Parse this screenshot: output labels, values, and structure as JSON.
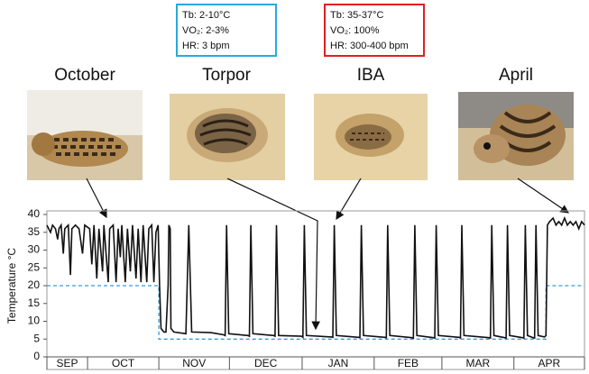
{
  "chart_data": {
    "type": "line",
    "y_label": "Temperature °C",
    "categories": [
      "SEP",
      "OCT",
      "NOV",
      "DEC",
      "JAN",
      "FEB",
      "MAR",
      "APR"
    ],
    "xlim": [
      0,
      7.54
    ],
    "xticks": [
      0,
      0.57,
      1.57,
      2.56,
      3.58,
      4.59,
      5.54,
      6.55,
      7.54
    ],
    "ylim": [
      0,
      40
    ],
    "yticks": [
      0,
      5,
      10,
      15,
      20,
      25,
      30,
      35,
      40
    ],
    "annotations": {
      "panels": [
        "October",
        "Torpor",
        "IBA",
        "April"
      ],
      "boxes": [
        {
          "color": "#29a8df",
          "lines": [
            "Tb: 2-10°C",
            "VO₂: 2-3%",
            "HR: 3 bpm"
          ]
        },
        {
          "color": "#e02020",
          "lines": [
            "Tb: 35-37°C",
            "VO₂: 100%",
            "HR: 300-400 bpm"
          ]
        }
      ]
    },
    "series": [
      {
        "color": "#111111",
        "line_style": "solid",
        "x": [
          0,
          0.05,
          0.08,
          0.12,
          0.15,
          0.17,
          0.2,
          0.23,
          0.25,
          0.3,
          0.33,
          0.35,
          0.4,
          0.45,
          0.5,
          0.53,
          0.6,
          0.63,
          0.66,
          0.7,
          0.73,
          0.78,
          0.8,
          0.86,
          0.88,
          0.93,
          0.97,
          1.0,
          1.03,
          1.05,
          1.1,
          1.13,
          1.17,
          1.2,
          1.25,
          1.28,
          1.32,
          1.35,
          1.4,
          1.43,
          1.47,
          1.5,
          1.53,
          1.56,
          1.58,
          1.6,
          1.64,
          1.67,
          1.7,
          1.71,
          1.73,
          1.74,
          1.78,
          1.95,
          1.99,
          2.03,
          2.3,
          2.48,
          2.5,
          2.52,
          2.55,
          2.82,
          2.84,
          2.86,
          2.89,
          3.18,
          3.2,
          3.22,
          3.25,
          3.57,
          3.59,
          3.61,
          3.64,
          3.99,
          4.01,
          4.03,
          4.06,
          4.37,
          4.39,
          4.41,
          4.44,
          4.74,
          4.76,
          4.78,
          4.81,
          5.12,
          5.14,
          5.16,
          5.19,
          5.42,
          5.44,
          5.46,
          5.49,
          5.78,
          5.8,
          5.82,
          5.85,
          6.2,
          6.22,
          6.24,
          6.27,
          6.42,
          6.44,
          6.46,
          6.49,
          6.67,
          6.69,
          6.71,
          6.74,
          6.82,
          6.84,
          6.86,
          6.89,
          6.98,
          7.0,
          7.02,
          7.05,
          7.1,
          7.14,
          7.18,
          7.22,
          7.26,
          7.3,
          7.34,
          7.38,
          7.42,
          7.46,
          7.5,
          7.54
        ],
        "values": [
          37,
          35,
          37,
          36,
          33,
          36,
          37,
          29,
          36,
          37,
          23,
          36,
          37,
          36,
          29,
          37,
          36,
          26,
          37,
          22,
          36,
          24,
          37,
          21,
          36,
          37,
          21,
          36,
          28,
          37,
          21,
          36,
          24,
          37,
          22,
          36,
          21,
          37,
          21,
          36,
          37,
          21,
          35,
          37,
          20,
          8,
          7,
          7,
          20,
          37,
          36,
          8,
          7,
          6.5,
          37,
          7,
          6.8,
          6.2,
          6,
          37,
          6.5,
          6,
          5.8,
          37,
          6.5,
          6,
          5.8,
          37,
          6,
          5.8,
          5.5,
          37,
          6,
          5.6,
          5.5,
          37,
          6,
          5.5,
          5.4,
          37,
          6,
          5.5,
          5.4,
          37,
          6,
          5.4,
          5.3,
          37,
          6,
          5.4,
          5.3,
          37,
          6,
          5.5,
          5.3,
          37,
          6,
          5.4,
          5.3,
          37,
          6,
          5.4,
          5.3,
          37,
          6,
          5.4,
          5.3,
          37,
          6,
          5.4,
          5.3,
          37,
          6,
          5.6,
          6,
          37,
          38,
          39,
          37,
          38,
          37,
          39,
          37,
          38,
          37,
          38,
          36,
          38,
          37
        ]
      },
      {
        "color": "#3a9bd5",
        "line_style": "dashed",
        "x": [
          0,
          1.57,
          1.57,
          7.0,
          7.0,
          7.54
        ],
        "values": [
          20,
          20,
          5,
          5,
          20,
          20
        ]
      }
    ]
  }
}
